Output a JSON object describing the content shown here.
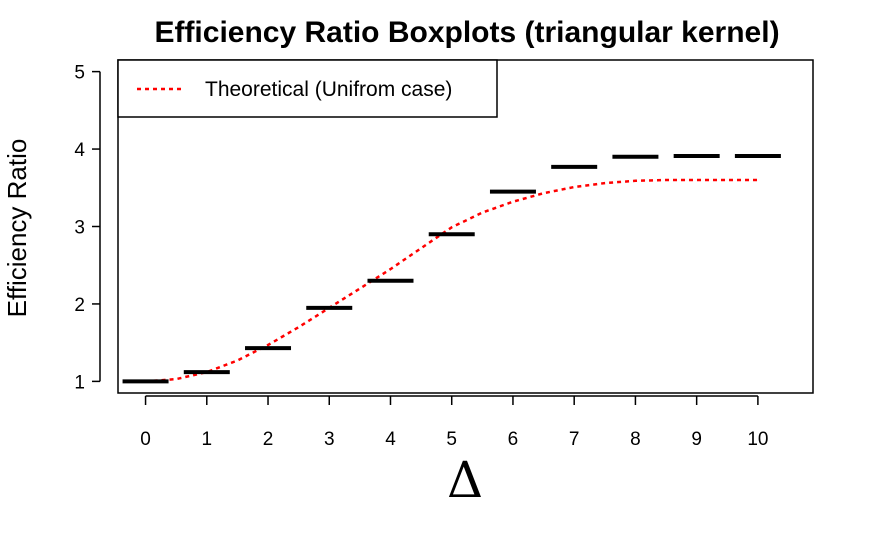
{
  "chart_data": {
    "type": "box",
    "title": "Efficiency Ratio Boxplots (triangular kernel)",
    "xlabel": "Δ",
    "ylabel": "Efficiency Ratio",
    "categories": [
      "0",
      "1",
      "2",
      "3",
      "4",
      "5",
      "6",
      "7",
      "8",
      "9",
      "10"
    ],
    "x": [
      0,
      1,
      2,
      3,
      4,
      5,
      6,
      7,
      8,
      9,
      10
    ],
    "medians": [
      1.0,
      1.12,
      1.43,
      1.95,
      2.3,
      2.9,
      3.45,
      3.77,
      3.9,
      3.91,
      3.91
    ],
    "theoretical": {
      "name": "Theoretical (Unifrom case)",
      "x": [
        0,
        0.5,
        1,
        1.5,
        2,
        2.5,
        3,
        3.5,
        4,
        4.5,
        5,
        5.5,
        6,
        6.5,
        7,
        7.5,
        8,
        8.5,
        9,
        9.5,
        10
      ],
      "y": [
        1.0,
        1.03,
        1.12,
        1.27,
        1.47,
        1.7,
        1.95,
        2.2,
        2.45,
        2.72,
        2.99,
        3.18,
        3.32,
        3.43,
        3.51,
        3.56,
        3.59,
        3.6,
        3.6,
        3.6,
        3.6
      ]
    },
    "xlim": [
      -0.45,
      10.9
    ],
    "ylim": [
      0.85,
      5.15
    ],
    "yticks": [
      1,
      2,
      3,
      4,
      5
    ],
    "grid": false,
    "legend_position": "top-left",
    "colors": {
      "theoretical": "#ff0000",
      "median": "#000000"
    }
  }
}
